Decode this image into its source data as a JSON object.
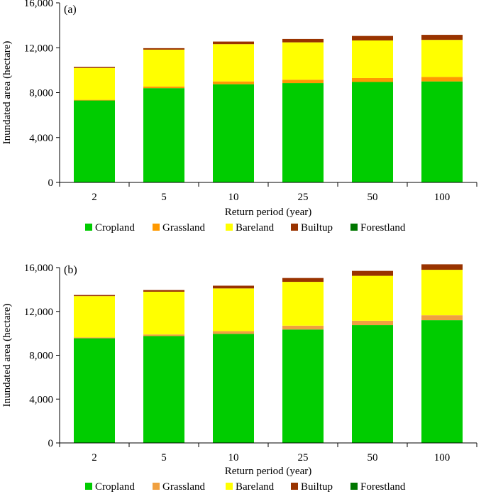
{
  "chart_data": [
    {
      "type": "bar",
      "stacked": true,
      "panel_label": "(a)",
      "categories": [
        "2",
        "5",
        "10",
        "25",
        "50",
        "100"
      ],
      "xlabel": "Return period (year)",
      "ylabel": "Inundated area (hectare)",
      "ylim": [
        0,
        16000
      ],
      "yticks": [
        0,
        4000,
        8000,
        12000,
        16000
      ],
      "ytick_labels": [
        "0",
        "4,000",
        "8,000",
        "12,000",
        "16,000"
      ],
      "grid": false,
      "legend_position": "bottom",
      "series": [
        {
          "name": "Cropland",
          "color": "#00cc00",
          "values": [
            7300,
            8400,
            8750,
            8850,
            8950,
            9000
          ]
        },
        {
          "name": "Grassland",
          "color": "#ff9900",
          "values": [
            60,
            150,
            250,
            300,
            350,
            400
          ]
        },
        {
          "name": "Bareland",
          "color": "#ffff00",
          "values": [
            2840,
            3280,
            3320,
            3330,
            3350,
            3300
          ]
        },
        {
          "name": "Builtup",
          "color": "#993300",
          "values": [
            100,
            130,
            230,
            300,
            400,
            450
          ]
        },
        {
          "name": "Forestland",
          "color": "#007700",
          "values": [
            0,
            0,
            0,
            0,
            0,
            0
          ]
        }
      ]
    },
    {
      "type": "bar",
      "stacked": true,
      "panel_label": "(b)",
      "categories": [
        "2",
        "5",
        "10",
        "25",
        "50",
        "100"
      ],
      "xlabel": "Return period (year)",
      "ylabel": "Inundated area (hectare)",
      "ylim": [
        0,
        16000
      ],
      "yticks": [
        0,
        4000,
        8000,
        12000,
        16000
      ],
      "ytick_labels": [
        "0",
        "4,000",
        "8,000",
        "12,000",
        "16,000"
      ],
      "grid": false,
      "legend_position": "bottom",
      "series": [
        {
          "name": "Cropland",
          "color": "#00cc00",
          "values": [
            9550,
            9750,
            9950,
            10350,
            10750,
            11200
          ]
        },
        {
          "name": "Grassland",
          "color": "#f0a040",
          "values": [
            80,
            150,
            250,
            350,
            400,
            450
          ]
        },
        {
          "name": "Bareland",
          "color": "#ffff00",
          "values": [
            3770,
            3900,
            3900,
            4000,
            4100,
            4150
          ]
        },
        {
          "name": "Builtup",
          "color": "#993300",
          "values": [
            100,
            150,
            250,
            350,
            450,
            500
          ]
        },
        {
          "name": "Forestland",
          "color": "#007700",
          "values": [
            0,
            0,
            0,
            0,
            0,
            0
          ]
        }
      ]
    }
  ]
}
